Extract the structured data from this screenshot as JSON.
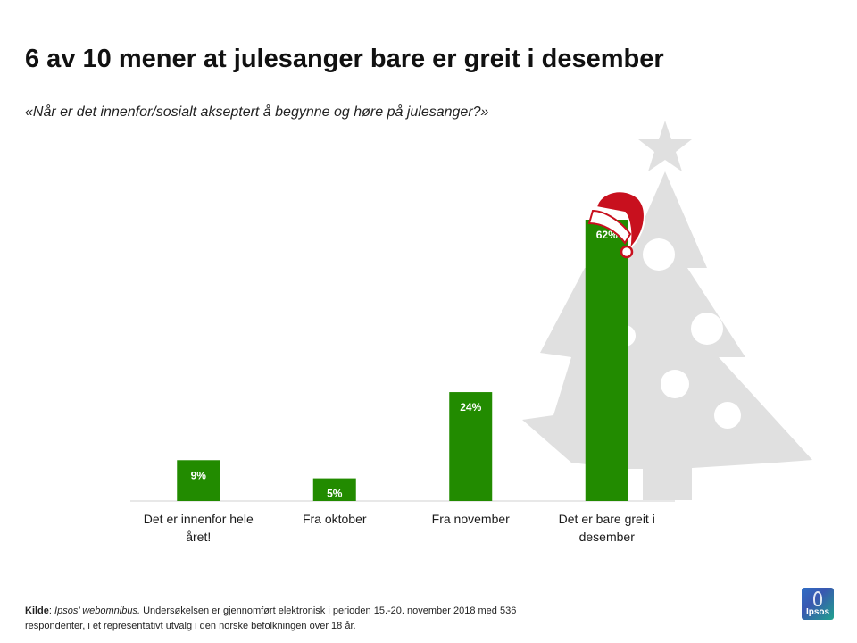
{
  "title": "6 av 10 mener at julesanger bare er greit i desember",
  "subtitle": "«Når er det innenfor/sosialt akseptert å begynne og høre på julesanger?»",
  "chart_data": {
    "type": "bar",
    "categories": [
      [
        "Det er innenfor hele",
        "året!"
      ],
      [
        "Fra oktober"
      ],
      [
        "Fra november"
      ],
      [
        "Det er bare greit i",
        "desember"
      ]
    ],
    "values": [
      9,
      5,
      24,
      62
    ],
    "value_labels": [
      "9%",
      "5%",
      "24%",
      "62%"
    ],
    "unit": "%",
    "ylim": [
      0,
      65
    ],
    "grid": false,
    "legend": "none",
    "bar_color": "#228b00",
    "value_label_color": "#ffffff"
  },
  "footer": {
    "kilde_label": "Kilde",
    "colon": ": ",
    "source_name": "Ipsos’ webomnibus.",
    "text_line1": " Undersøkelsen er gjennomført elektronisk i perioden 15.-20. november 2018 med 536",
    "text_line2": "respondenter, i et representativt utvalg i den norske befolkningen over 18 år."
  },
  "logo": {
    "text": "Ipsos",
    "name": "ipsos-logo"
  },
  "decoration": {
    "tree_color": "#e0e0e0",
    "hat_color": "#c8101e"
  }
}
